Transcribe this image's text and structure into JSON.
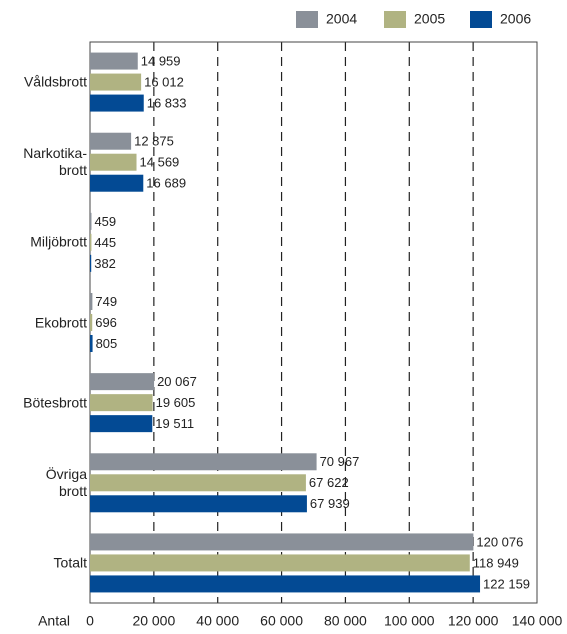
{
  "chart_data": {
    "type": "barh",
    "x_label": "Antal",
    "categories": [
      "Våldsbrott",
      "Narkotika-\nbrott",
      "Miljöbrott",
      "Ekobrott",
      "Bötesbrott",
      "Övriga\nbrott",
      "Totalt"
    ],
    "series": [
      {
        "name": "2004",
        "color": "#8a9099",
        "values": [
          14959,
          12875,
          459,
          749,
          20067,
          70967,
          120076
        ],
        "value_labels": [
          "14 959",
          "12 875",
          "459",
          "749",
          "20 067",
          "70 967",
          "120 076"
        ]
      },
      {
        "name": "2005",
        "color": "#b0b382",
        "values": [
          16012,
          14569,
          445,
          696,
          19605,
          67622,
          118949
        ],
        "value_labels": [
          "16 012",
          "14 569",
          "445",
          "696",
          "19 605",
          "67 622",
          "118 949"
        ]
      },
      {
        "name": "2006",
        "color": "#034a94",
        "values": [
          16833,
          16689,
          382,
          805,
          19511,
          67939,
          122159
        ],
        "value_labels": [
          "16 833",
          "16 689",
          "382",
          "805",
          "19 511",
          "67 939",
          "122 159"
        ]
      }
    ],
    "xlim": [
      0,
      140000
    ],
    "xticks": [
      0,
      {
        "value": 20000,
        "label": "20 000"
      },
      {
        "value": 40000,
        "label": "40 000"
      },
      {
        "value": 60000,
        "label": "60 000"
      },
      {
        "value": 80000,
        "label": "80 000"
      },
      {
        "value": 100000,
        "label": "100 000"
      },
      {
        "value": 120000,
        "label": "120 000"
      },
      {
        "value": 140000,
        "label": "140 000"
      }
    ],
    "grid": true,
    "legend": "top-right"
  }
}
